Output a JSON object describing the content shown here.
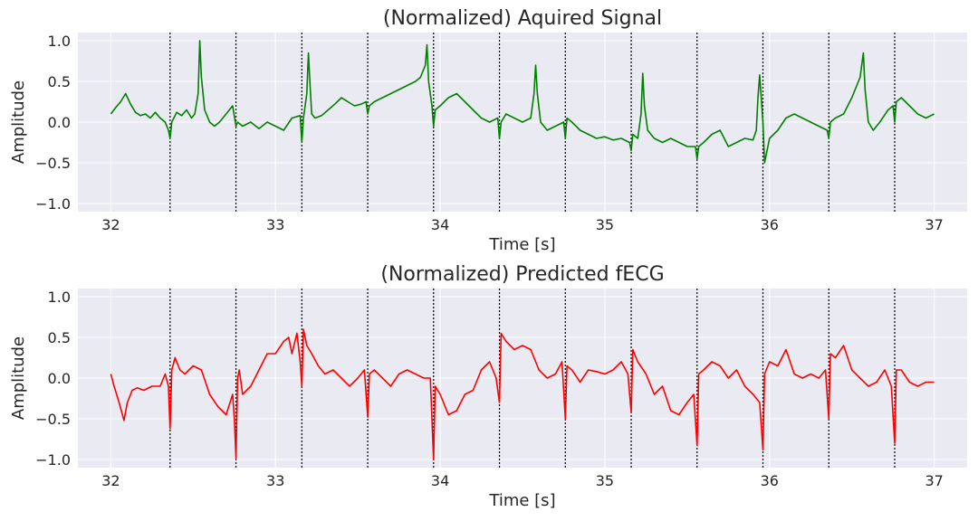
{
  "chart_data": [
    {
      "type": "line",
      "title": "(Normalized) Aquired Signal",
      "xlabel": "Time [s]",
      "ylabel": "Amplitude",
      "xlim": [
        31.8,
        37.2
      ],
      "ylim": [
        -1.1,
        1.1
      ],
      "xticks": [
        32,
        33,
        34,
        35,
        36,
        37
      ],
      "xtick_labels": [
        "32",
        "33",
        "34",
        "35",
        "36",
        "37"
      ],
      "yticks": [
        1.0,
        0.5,
        0.0,
        -0.5,
        -1.0
      ],
      "ytick_labels": [
        "1.0",
        "0.5",
        "0.0",
        "−0.5",
        "−1.0"
      ],
      "grid": true,
      "background": "#eaeaf2",
      "vlines": [
        32.36,
        32.76,
        33.16,
        33.56,
        33.96,
        34.36,
        34.76,
        35.16,
        35.56,
        35.96,
        36.36,
        36.76
      ],
      "series": [
        {
          "color": "#008000",
          "x": [
            32.0,
            32.03,
            32.06,
            32.09,
            32.12,
            32.15,
            32.18,
            32.21,
            32.24,
            32.27,
            32.3,
            32.33,
            32.35,
            32.36,
            32.37,
            32.4,
            32.43,
            32.46,
            32.49,
            32.51,
            32.53,
            32.54,
            32.55,
            32.57,
            32.6,
            32.63,
            32.66,
            32.7,
            32.74,
            32.76,
            32.77,
            32.8,
            32.85,
            32.9,
            32.95,
            33.0,
            33.05,
            33.1,
            33.15,
            33.16,
            33.17,
            33.19,
            33.2,
            33.21,
            33.22,
            33.24,
            33.28,
            33.32,
            33.36,
            33.4,
            33.44,
            33.48,
            33.52,
            33.55,
            33.56,
            33.57,
            33.6,
            33.65,
            33.7,
            33.75,
            33.8,
            33.85,
            33.88,
            33.91,
            33.92,
            33.93,
            33.95,
            33.96,
            33.97,
            34.0,
            34.05,
            34.1,
            34.15,
            34.2,
            34.25,
            34.3,
            34.35,
            34.36,
            34.37,
            34.4,
            34.45,
            34.5,
            34.55,
            34.57,
            34.58,
            34.59,
            34.61,
            34.65,
            34.7,
            34.75,
            34.76,
            34.77,
            34.8,
            34.85,
            34.9,
            34.95,
            35.0,
            35.05,
            35.1,
            35.15,
            35.16,
            35.17,
            35.2,
            35.22,
            35.23,
            35.24,
            35.26,
            35.3,
            35.35,
            35.4,
            35.45,
            35.5,
            35.55,
            35.56,
            35.57,
            35.6,
            35.65,
            35.7,
            35.75,
            35.8,
            35.85,
            35.9,
            35.92,
            35.93,
            35.94,
            35.96,
            35.97,
            36.0,
            36.05,
            36.1,
            36.15,
            36.2,
            36.25,
            36.3,
            36.35,
            36.36,
            36.37,
            36.4,
            36.45,
            36.5,
            36.55,
            36.57,
            36.58,
            36.6,
            36.63,
            36.67,
            36.72,
            36.75,
            36.76,
            36.77,
            36.8,
            36.85,
            36.9,
            36.95,
            37.0
          ],
          "values": [
            0.1,
            0.18,
            0.25,
            0.35,
            0.22,
            0.12,
            0.08,
            0.1,
            0.05,
            0.12,
            0.05,
            0.0,
            -0.1,
            -0.2,
            0.0,
            0.12,
            0.08,
            0.15,
            0.05,
            0.1,
            0.35,
            1.0,
            0.55,
            0.15,
            0.0,
            -0.05,
            0.0,
            0.1,
            0.2,
            -0.05,
            0.0,
            -0.05,
            0.0,
            -0.08,
            0.0,
            -0.05,
            -0.1,
            0.05,
            0.08,
            -0.25,
            0.05,
            0.35,
            0.85,
            0.45,
            0.1,
            0.05,
            0.08,
            0.15,
            0.22,
            0.3,
            0.25,
            0.2,
            0.22,
            0.25,
            0.1,
            0.2,
            0.25,
            0.3,
            0.35,
            0.4,
            0.45,
            0.5,
            0.55,
            0.7,
            0.95,
            0.5,
            0.2,
            -0.05,
            0.15,
            0.2,
            0.3,
            0.35,
            0.25,
            0.15,
            0.05,
            0.0,
            0.05,
            -0.2,
            0.0,
            0.1,
            0.05,
            0.0,
            0.05,
            0.35,
            0.7,
            0.35,
            0.0,
            -0.1,
            -0.05,
            0.0,
            -0.2,
            0.05,
            0.0,
            -0.1,
            -0.15,
            -0.2,
            -0.18,
            -0.22,
            -0.2,
            -0.25,
            -0.35,
            -0.15,
            -0.2,
            0.1,
            0.6,
            0.2,
            -0.1,
            -0.2,
            -0.25,
            -0.2,
            -0.25,
            -0.3,
            -0.3,
            -0.45,
            -0.3,
            -0.25,
            -0.15,
            -0.1,
            -0.3,
            -0.25,
            -0.2,
            -0.22,
            -0.1,
            0.3,
            0.58,
            0.0,
            -0.5,
            -0.2,
            -0.1,
            0.05,
            0.1,
            0.05,
            0.0,
            -0.05,
            -0.1,
            -0.2,
            0.0,
            0.05,
            0.1,
            0.3,
            0.55,
            0.85,
            0.4,
            0.0,
            -0.1,
            0.0,
            0.15,
            0.2,
            0.0,
            0.25,
            0.3,
            0.2,
            0.1,
            0.05,
            0.1
          ]
        }
      ]
    },
    {
      "type": "line",
      "title": "(Normalized) Predicted fECG",
      "xlabel": "Time [s]",
      "ylabel": "Amplitude",
      "xlim": [
        31.8,
        37.2
      ],
      "ylim": [
        -1.1,
        1.1
      ],
      "xticks": [
        32,
        33,
        34,
        35,
        36,
        37
      ],
      "xtick_labels": [
        "32",
        "33",
        "34",
        "35",
        "36",
        "37"
      ],
      "yticks": [
        1.0,
        0.5,
        0.0,
        -0.5,
        -1.0
      ],
      "ytick_labels": [
        "1.0",
        "0.5",
        "0.0",
        "−0.5",
        "−1.0"
      ],
      "grid": true,
      "background": "#eaeaf2",
      "vlines": [
        32.36,
        32.76,
        33.16,
        33.56,
        33.96,
        34.36,
        34.76,
        35.16,
        35.56,
        35.96,
        36.36,
        36.76
      ],
      "series": [
        {
          "color": "#ff0000",
          "x": [
            32.0,
            32.02,
            32.05,
            32.08,
            32.1,
            32.13,
            32.16,
            32.2,
            32.25,
            32.3,
            32.33,
            32.35,
            32.36,
            32.37,
            32.39,
            32.42,
            32.45,
            32.5,
            32.55,
            32.6,
            32.65,
            32.7,
            32.74,
            32.75,
            32.76,
            32.77,
            32.78,
            32.8,
            32.85,
            32.9,
            32.95,
            33.0,
            33.05,
            33.08,
            33.1,
            33.13,
            33.15,
            33.16,
            33.17,
            33.19,
            33.22,
            33.26,
            33.3,
            33.35,
            33.4,
            33.45,
            33.5,
            33.54,
            33.56,
            33.57,
            33.6,
            33.65,
            33.7,
            33.75,
            33.8,
            33.85,
            33.9,
            33.94,
            33.96,
            33.97,
            34.0,
            34.05,
            34.1,
            34.15,
            34.2,
            34.25,
            34.3,
            34.34,
            34.36,
            34.37,
            34.4,
            34.45,
            34.5,
            34.55,
            34.6,
            34.65,
            34.7,
            34.74,
            34.76,
            34.77,
            34.8,
            34.85,
            34.9,
            34.95,
            35.0,
            35.05,
            35.1,
            35.14,
            35.16,
            35.17,
            35.2,
            35.25,
            35.3,
            35.35,
            35.4,
            35.45,
            35.5,
            35.54,
            35.56,
            35.57,
            35.6,
            35.65,
            35.7,
            35.75,
            35.8,
            35.85,
            35.9,
            35.94,
            35.96,
            35.97,
            36.0,
            36.05,
            36.1,
            36.15,
            36.2,
            36.25,
            36.3,
            36.34,
            36.36,
            36.37,
            36.4,
            36.45,
            36.5,
            36.55,
            36.6,
            36.65,
            36.7,
            36.74,
            36.76,
            36.77,
            36.8,
            36.85,
            36.9,
            36.95,
            37.0
          ],
          "values": [
            0.05,
            -0.1,
            -0.3,
            -0.52,
            -0.3,
            -0.15,
            -0.12,
            -0.15,
            -0.1,
            -0.1,
            0.05,
            -0.1,
            -0.62,
            0.1,
            0.25,
            0.1,
            0.05,
            0.15,
            0.1,
            -0.2,
            -0.35,
            -0.45,
            -0.2,
            -0.5,
            -0.98,
            0.0,
            0.1,
            -0.2,
            -0.1,
            0.1,
            0.3,
            0.3,
            0.45,
            0.5,
            0.3,
            0.55,
            0.2,
            -0.1,
            0.6,
            0.4,
            0.3,
            0.15,
            0.05,
            0.1,
            0.0,
            -0.1,
            0.0,
            0.1,
            -0.48,
            0.05,
            0.1,
            0.0,
            -0.1,
            0.05,
            0.1,
            0.05,
            0.0,
            0.0,
            -1.0,
            -0.1,
            -0.2,
            -0.45,
            -0.4,
            -0.2,
            -0.15,
            0.1,
            0.2,
            0.0,
            -0.3,
            0.55,
            0.45,
            0.35,
            0.4,
            0.35,
            0.1,
            0.0,
            0.05,
            0.2,
            -0.5,
            0.15,
            0.1,
            -0.05,
            0.1,
            0.08,
            0.05,
            0.1,
            0.2,
            0.05,
            -0.42,
            0.35,
            0.2,
            0.05,
            -0.2,
            -0.1,
            -0.4,
            -0.45,
            -0.3,
            -0.2,
            -0.83,
            0.05,
            0.1,
            0.2,
            0.15,
            0.0,
            0.1,
            -0.1,
            -0.2,
            -0.3,
            -0.88,
            0.05,
            0.2,
            0.15,
            0.35,
            0.05,
            0.0,
            0.05,
            0.0,
            0.1,
            -0.5,
            0.3,
            0.25,
            0.4,
            0.1,
            0.0,
            -0.1,
            -0.05,
            0.1,
            -0.1,
            -0.8,
            0.1,
            0.1,
            -0.05,
            -0.1,
            -0.05,
            -0.05
          ]
        }
      ]
    }
  ]
}
